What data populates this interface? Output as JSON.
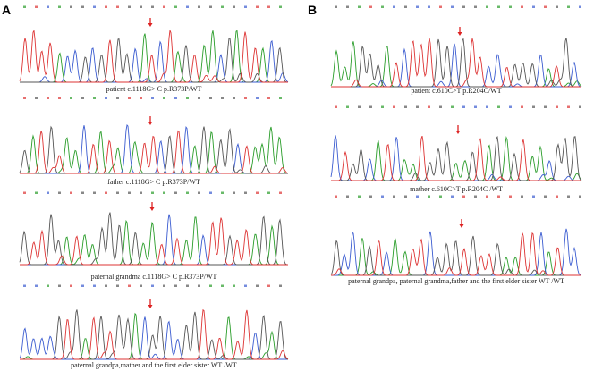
{
  "panels": [
    {
      "label": "A",
      "traces": [
        {
          "caption": "patient c.1118G> C p.R373P/WT"
        },
        {
          "caption": "father c.1118G> C p.R373P/WT"
        },
        {
          "caption": "paternal grandma c.1118G> C p.R373P/WT"
        },
        {
          "caption": "paternal grandpa,mather and the first elder sister WT /WT"
        }
      ]
    },
    {
      "label": "B",
      "traces": [
        {
          "caption": "patient c.610C>T p.R204C/WT"
        },
        {
          "caption": "mather c.610C>T p.R204C /WT"
        },
        {
          "caption": "paternal grandpa, paternal grandma,father and the first elder sister WT /WT"
        }
      ]
    }
  ]
}
